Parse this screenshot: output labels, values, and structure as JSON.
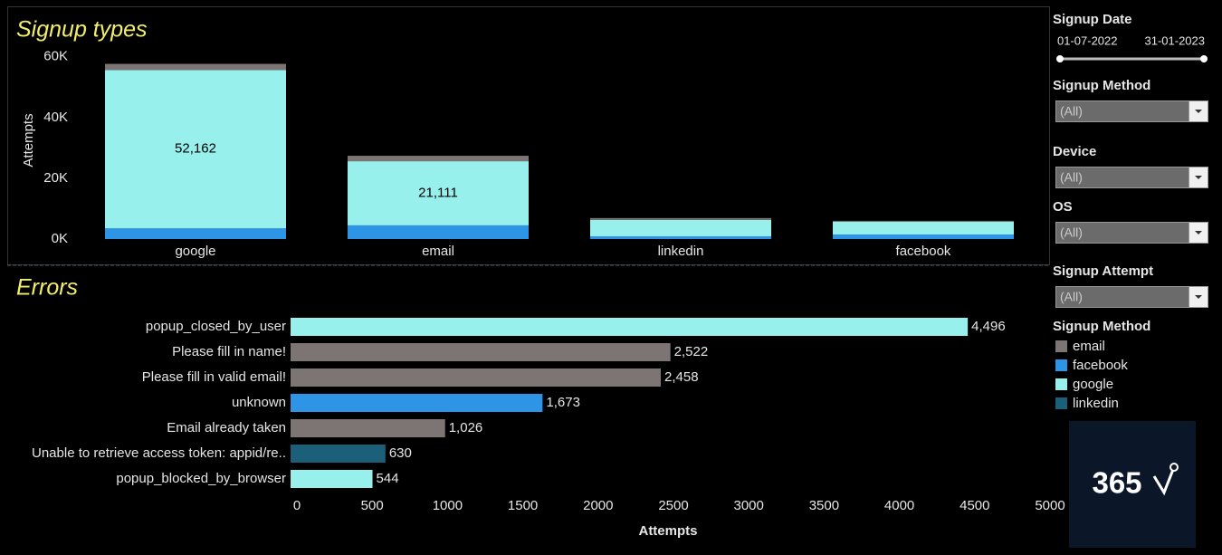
{
  "chart_data": [
    {
      "type": "stacked_bar",
      "title": "Signup types",
      "y_label": "Attempts",
      "categories": [
        "google",
        "email",
        "linkedin",
        "facebook"
      ],
      "series": [
        {
          "color": "#2d94e6",
          "values": [
            3500,
            4500,
            900,
            1500
          ]
        },
        {
          "color": "#98f0ec",
          "values": [
            52162,
            21111,
            5400,
            4200
          ],
          "value_labels": [
            "52,162",
            "21,111",
            null,
            null
          ]
        },
        {
          "color": "#7d7573",
          "values": [
            2000,
            1800,
            600,
            300
          ]
        }
      ],
      "ylim": [
        0,
        62000
      ],
      "yticks": [
        {
          "value": 0,
          "label": "0K"
        },
        {
          "value": 20000,
          "label": "20K"
        },
        {
          "value": 40000,
          "label": "40K"
        },
        {
          "value": 60000,
          "label": "60K"
        }
      ]
    },
    {
      "type": "hbar",
      "title": "Errors",
      "x_label": "Attempts",
      "categories": [
        "popup_closed_by_user",
        "Please fill in name!",
        "Please fill in valid email!",
        "unknown",
        "Email already taken",
        "Unable to retrieve access token: appid/re..",
        "popup_blocked_by_browser"
      ],
      "values": [
        4496,
        2522,
        2458,
        1673,
        1026,
        630,
        544
      ],
      "value_labels": [
        "4,496",
        "2,522",
        "2,458",
        "1,673",
        "1,026",
        "630",
        "544"
      ],
      "colors": [
        "#98f0ec",
        "#7d7573",
        "#7d7573",
        "#2d94e6",
        "#7d7573",
        "#1b5f78",
        "#98f0ec"
      ],
      "xlim": [
        0,
        5000
      ],
      "xticks": [
        0,
        500,
        1000,
        1500,
        2000,
        2500,
        3000,
        3500,
        4000,
        4500,
        5000
      ]
    }
  ],
  "sidebar": {
    "date_filter": {
      "label": "Signup Date",
      "start": "01-07-2022",
      "end": "31-01-2023"
    },
    "dropdowns": [
      {
        "label": "Signup Method",
        "value": "(All)"
      },
      {
        "label": "Device",
        "value": "(All)"
      },
      {
        "label": "OS",
        "value": "(All)"
      },
      {
        "label": "Signup Attempt",
        "value": "(All)"
      }
    ],
    "legend": {
      "title": "Signup Method",
      "items": [
        {
          "name": "email",
          "color": "#7d7573"
        },
        {
          "name": "facebook",
          "color": "#2d94e6"
        },
        {
          "name": "google",
          "color": "#98f0ec"
        },
        {
          "name": "linkedin",
          "color": "#1b5f78"
        }
      ]
    },
    "logo": "365"
  }
}
